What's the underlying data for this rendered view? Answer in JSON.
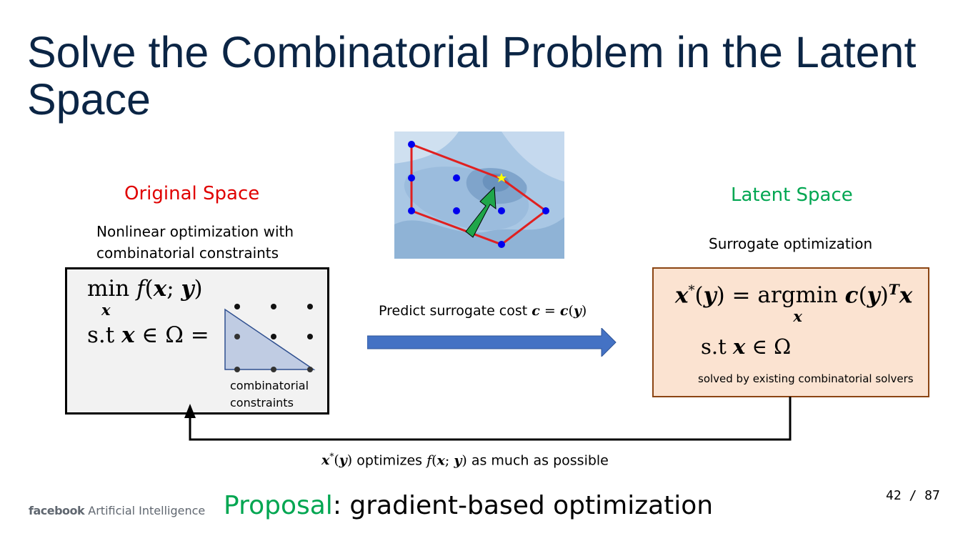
{
  "title": "Solve the Combinatorial Problem in the Latent Space",
  "original": {
    "heading": "Original Space",
    "description_line1": "Nonlinear optimization with",
    "description_line2": "combinatorial constraints",
    "min_word": "min",
    "st_label": "s.t",
    "constraints_line1": "combinatorial",
    "constraints_line2": "constraints"
  },
  "latent": {
    "heading": "Latent Space",
    "description": "Surrogate optimization",
    "argmin_word": "argmin",
    "st_label": "s.t",
    "solver_note": "solved by existing combinatorial solvers"
  },
  "arrow_label_prefix": "Predict surrogate cost",
  "feedback_suffix": "optimizes",
  "feedback_tail": "as much as possible",
  "footer": {
    "brand": "facebook",
    "brand_suffix": "Artificial Intelligence",
    "proposal_word": "Proposal",
    "proposal_rest": ": gradient-based optimization",
    "page": "42 / 87"
  },
  "colors": {
    "title": "#0b2545",
    "original_heading": "#e00000",
    "latent_heading": "#00a651",
    "proposal": "#00a651",
    "arrow": "#4472c4",
    "latent_box_fill": "#fbe3d1",
    "latent_box_border": "#8b4513"
  }
}
